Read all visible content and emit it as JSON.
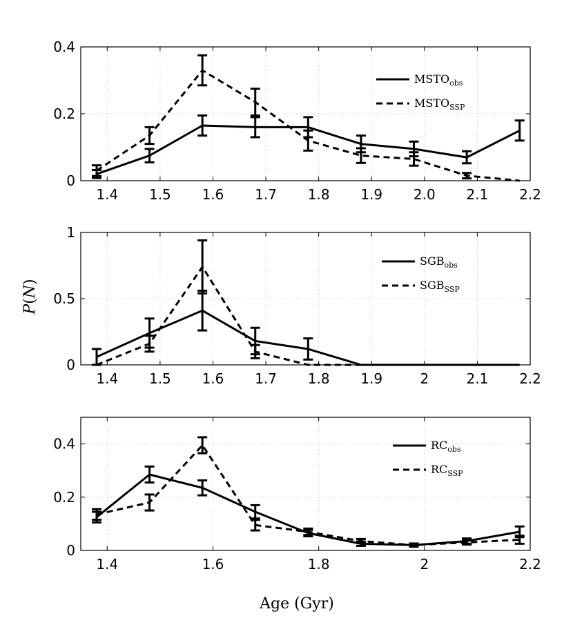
{
  "chart_data": [
    {
      "type": "line",
      "panel": "top",
      "xlim": [
        1.35,
        2.2
      ],
      "ylim": [
        0,
        0.4
      ],
      "xticks": [
        "1.4",
        "1.5",
        "1.6",
        "1.7",
        "1.8",
        "1.9",
        "2.0",
        "2.1",
        "2.2"
      ],
      "yticks": [
        "0",
        "0.2",
        "0.4"
      ],
      "grid": true,
      "legend_position": "top-right",
      "x": [
        1.38,
        1.48,
        1.58,
        1.68,
        1.78,
        1.88,
        1.98,
        2.08,
        2.18
      ],
      "series": [
        {
          "name": "MSTO",
          "name_sub": "obs",
          "style": "solid",
          "values": [
            0.02,
            0.075,
            0.165,
            0.16,
            0.16,
            0.11,
            0.095,
            0.07,
            0.15
          ],
          "errors": [
            0.012,
            0.02,
            0.03,
            0.03,
            0.03,
            0.025,
            0.022,
            0.018,
            0.03
          ]
        },
        {
          "name": "MSTO",
          "name_sub": "SSP",
          "style": "dashed",
          "values": [
            0.03,
            0.135,
            0.33,
            0.235,
            0.12,
            0.075,
            0.065,
            0.015,
            0.0
          ],
          "errors": [
            0.016,
            0.025,
            0.045,
            0.04,
            0.03,
            0.022,
            0.02,
            0.008,
            null
          ]
        }
      ]
    },
    {
      "type": "line",
      "panel": "middle",
      "ylabel": "P(N)",
      "xlim": [
        1.35,
        2.2
      ],
      "ylim": [
        0,
        1
      ],
      "xticks": [
        "1.4",
        "1.5",
        "1.6",
        "1.7",
        "1.8",
        "1.9",
        "2",
        "2.1",
        "2.2"
      ],
      "yticks": [
        "0",
        "0.5",
        "1"
      ],
      "grid": true,
      "legend_position": "top-right",
      "x": [
        1.38,
        1.48,
        1.58,
        1.68,
        1.78,
        1.88,
        1.98,
        2.08,
        2.18
      ],
      "series": [
        {
          "name": "SGB",
          "name_sub": "obs",
          "style": "solid",
          "values": [
            0.06,
            0.24,
            0.41,
            0.18,
            0.12,
            0.0,
            0.0,
            0.0,
            0.0
          ],
          "errors": [
            0.06,
            0.11,
            0.15,
            0.1,
            0.08,
            null,
            null,
            null,
            null
          ]
        },
        {
          "name": "SGB",
          "name_sub": "SSP",
          "style": "dashed",
          "values": [
            0.0,
            0.16,
            0.74,
            0.1,
            0.0,
            0.0,
            0.0,
            0.0,
            0.0
          ],
          "errors": [
            null,
            0.06,
            0.2,
            0.05,
            null,
            null,
            null,
            null,
            null
          ]
        }
      ]
    },
    {
      "type": "line",
      "panel": "bottom",
      "xlabel": "Age (Gyr)",
      "xlim": [
        1.35,
        2.2
      ],
      "ylim": [
        0,
        0.5
      ],
      "xticks": [
        "1.4",
        "1.6",
        "1.8",
        "2",
        "2.2"
      ],
      "yticks": [
        "0",
        "0.2",
        "0.4"
      ],
      "grid": true,
      "legend_position": "top-right",
      "x": [
        1.38,
        1.48,
        1.58,
        1.68,
        1.78,
        1.88,
        1.98,
        2.08,
        2.18
      ],
      "series": [
        {
          "name": "RC",
          "name_sub": "obs",
          "style": "solid",
          "values": [
            0.125,
            0.285,
            0.235,
            0.145,
            0.065,
            0.025,
            0.02,
            0.035,
            0.07
          ],
          "errors": [
            0.02,
            0.03,
            0.028,
            0.025,
            0.012,
            0.008,
            0.006,
            0.01,
            0.02
          ]
        },
        {
          "name": "RC",
          "name_sub": "SSP",
          "style": "dashed",
          "values": [
            0.135,
            0.18,
            0.395,
            0.095,
            0.07,
            0.035,
            0.02,
            0.03,
            0.04
          ],
          "errors": [
            0.02,
            0.03,
            0.03,
            0.02,
            0.012,
            0.008,
            0.005,
            0.008,
            0.015
          ]
        }
      ]
    }
  ]
}
